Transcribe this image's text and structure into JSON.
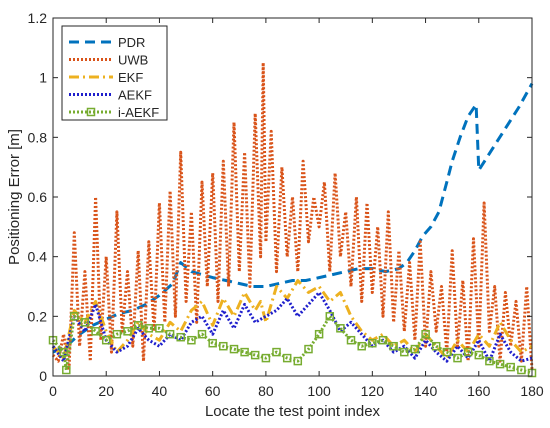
{
  "chart_data": {
    "type": "line",
    "title": "",
    "xlabel": "Locate the test point index",
    "ylabel": "Positioning Error [m]",
    "xlim": [
      0,
      180
    ],
    "ylim": [
      0,
      1.2
    ],
    "xticks": [
      "0",
      "20",
      "40",
      "60",
      "80",
      "100",
      "120",
      "140",
      "160",
      "180"
    ],
    "yticks": [
      "0",
      "0.2",
      "0.4",
      "0.6",
      "0.8",
      "1",
      "1.2"
    ],
    "grid": false,
    "legend_position": "top-left",
    "series": [
      {
        "name": "PDR",
        "color": "#0072BD",
        "style": "dashed",
        "x": [
          0,
          5,
          10,
          15,
          20,
          25,
          30,
          35,
          40,
          45,
          48,
          52,
          56,
          60,
          65,
          70,
          75,
          80,
          85,
          90,
          95,
          100,
          105,
          110,
          115,
          120,
          125,
          130,
          133,
          136,
          139,
          142,
          145,
          148,
          150,
          153,
          156,
          159,
          160,
          165,
          170,
          175,
          180
        ],
        "values": [
          0.08,
          0.1,
          0.14,
          0.17,
          0.19,
          0.21,
          0.22,
          0.24,
          0.27,
          0.31,
          0.38,
          0.35,
          0.34,
          0.33,
          0.32,
          0.31,
          0.3,
          0.3,
          0.31,
          0.32,
          0.32,
          0.33,
          0.34,
          0.35,
          0.36,
          0.36,
          0.35,
          0.36,
          0.38,
          0.42,
          0.47,
          0.5,
          0.55,
          0.65,
          0.72,
          0.8,
          0.87,
          0.91,
          0.69,
          0.76,
          0.83,
          0.9,
          0.98
        ]
      },
      {
        "name": "UWB",
        "color": "#D95319",
        "style": "dotted",
        "x": [
          0,
          2,
          4,
          6,
          8,
          10,
          12,
          14,
          16,
          18,
          20,
          22,
          24,
          26,
          28,
          30,
          32,
          34,
          36,
          38,
          40,
          42,
          44,
          46,
          48,
          50,
          52,
          54,
          56,
          58,
          60,
          62,
          64,
          66,
          68,
          70,
          72,
          74,
          76,
          78,
          79,
          80,
          82,
          84,
          86,
          88,
          90,
          92,
          94,
          96,
          98,
          100,
          102,
          104,
          106,
          108,
          110,
          112,
          114,
          116,
          118,
          120,
          122,
          124,
          126,
          128,
          130,
          132,
          134,
          136,
          138,
          140,
          142,
          144,
          146,
          148,
          150,
          152,
          154,
          156,
          158,
          160,
          162,
          164,
          166,
          168,
          170,
          172,
          174,
          176,
          178,
          180
        ],
        "values": [
          0.07,
          0.05,
          0.14,
          0.02,
          0.48,
          0.1,
          0.35,
          0.05,
          0.6,
          0.12,
          0.4,
          0.08,
          0.55,
          0.15,
          0.35,
          0.1,
          0.42,
          0.05,
          0.45,
          0.15,
          0.58,
          0.18,
          0.62,
          0.2,
          0.75,
          0.25,
          0.55,
          0.18,
          0.65,
          0.3,
          0.68,
          0.25,
          0.72,
          0.3,
          0.85,
          0.35,
          0.75,
          0.3,
          0.88,
          0.4,
          1.05,
          0.45,
          0.82,
          0.35,
          0.7,
          0.4,
          0.6,
          0.35,
          0.72,
          0.45,
          0.6,
          0.5,
          0.65,
          0.35,
          0.68,
          0.4,
          0.55,
          0.3,
          0.6,
          0.25,
          0.58,
          0.28,
          0.5,
          0.2,
          0.55,
          0.18,
          0.42,
          0.15,
          0.38,
          0.12,
          0.45,
          0.1,
          0.35,
          0.15,
          0.3,
          0.08,
          0.42,
          0.1,
          0.32,
          0.05,
          0.46,
          0.1,
          0.58,
          0.15,
          0.3,
          0.05,
          0.28,
          0.1,
          0.25,
          0.05,
          0.3,
          0.02
        ]
      },
      {
        "name": "EKF",
        "color": "#EDB120",
        "style": "dashdot",
        "x": [
          0,
          4,
          8,
          12,
          16,
          20,
          24,
          28,
          32,
          36,
          40,
          44,
          48,
          52,
          56,
          60,
          64,
          68,
          72,
          76,
          78,
          80,
          84,
          88,
          92,
          96,
          100,
          104,
          108,
          112,
          116,
          120,
          124,
          128,
          132,
          136,
          140,
          144,
          148,
          152,
          156,
          160,
          164,
          168,
          172,
          176,
          180
        ],
        "values": [
          0.1,
          0.06,
          0.22,
          0.18,
          0.25,
          0.15,
          0.08,
          0.12,
          0.18,
          0.14,
          0.12,
          0.18,
          0.15,
          0.22,
          0.25,
          0.17,
          0.26,
          0.2,
          0.28,
          0.22,
          0.25,
          0.18,
          0.3,
          0.26,
          0.32,
          0.28,
          0.3,
          0.25,
          0.28,
          0.2,
          0.15,
          0.12,
          0.14,
          0.1,
          0.12,
          0.08,
          0.14,
          0.1,
          0.06,
          0.12,
          0.08,
          0.14,
          0.1,
          0.18,
          0.12,
          0.08,
          0.1
        ]
      },
      {
        "name": "AEKF",
        "color": "#1F1FCC",
        "style": "dotted",
        "x": [
          0,
          4,
          8,
          12,
          16,
          20,
          24,
          28,
          32,
          36,
          40,
          44,
          48,
          52,
          56,
          60,
          64,
          68,
          72,
          76,
          80,
          84,
          88,
          92,
          96,
          100,
          104,
          108,
          112,
          116,
          120,
          124,
          128,
          132,
          136,
          140,
          144,
          148,
          152,
          156,
          160,
          164,
          168,
          172,
          176,
          180
        ],
        "values": [
          0.1,
          0.05,
          0.2,
          0.15,
          0.24,
          0.12,
          0.08,
          0.1,
          0.16,
          0.12,
          0.1,
          0.14,
          0.12,
          0.18,
          0.2,
          0.14,
          0.22,
          0.16,
          0.24,
          0.18,
          0.2,
          0.22,
          0.26,
          0.2,
          0.24,
          0.28,
          0.22,
          0.15,
          0.18,
          0.14,
          0.1,
          0.12,
          0.08,
          0.1,
          0.06,
          0.12,
          0.08,
          0.05,
          0.1,
          0.06,
          0.12,
          0.05,
          0.14,
          0.08,
          0.05,
          0.06
        ]
      },
      {
        "name": "i-AEKF",
        "color": "#77AC30",
        "style": "dotted-square",
        "x": [
          0,
          4,
          5,
          8,
          12,
          16,
          20,
          24,
          28,
          32,
          36,
          40,
          44,
          48,
          52,
          56,
          60,
          64,
          68,
          72,
          76,
          80,
          84,
          88,
          92,
          96,
          100,
          104,
          108,
          112,
          116,
          120,
          124,
          128,
          132,
          136,
          140,
          144,
          148,
          152,
          156,
          160,
          164,
          168,
          172,
          176,
          180
        ],
        "values": [
          0.12,
          0.08,
          0.02,
          0.2,
          0.18,
          0.15,
          0.12,
          0.14,
          0.15,
          0.17,
          0.16,
          0.16,
          0.14,
          0.13,
          0.12,
          0.14,
          0.11,
          0.1,
          0.09,
          0.08,
          0.07,
          0.06,
          0.08,
          0.06,
          0.05,
          0.09,
          0.14,
          0.2,
          0.16,
          0.12,
          0.1,
          0.11,
          0.12,
          0.1,
          0.08,
          0.09,
          0.14,
          0.1,
          0.08,
          0.06,
          0.08,
          0.07,
          0.05,
          0.04,
          0.03,
          0.02,
          0.01
        ]
      }
    ]
  }
}
